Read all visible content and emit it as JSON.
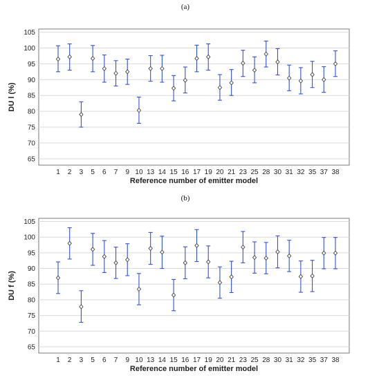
{
  "figure": {
    "panel_a_tag": "(a)",
    "panel_b_tag": "(b)"
  },
  "chart_data": [
    {
      "type": "scatter",
      "title": "(a)",
      "xlabel": "Reference number of emitter model",
      "ylabel": "DU l (%)",
      "ylim": [
        63,
        106
      ],
      "yticks": [
        65,
        70,
        75,
        80,
        85,
        90,
        95,
        100,
        105
      ],
      "grid": true,
      "categories": [
        "1",
        "2",
        "3",
        "5",
        "6",
        "7",
        "9",
        "10",
        "13",
        "14",
        "15",
        "16",
        "17",
        "19",
        "20",
        "21",
        "23",
        "25",
        "28",
        "30",
        "31",
        "32",
        "35",
        "37",
        "38"
      ],
      "series": [
        {
          "values": [
            96.5,
            97.2,
            79.0,
            96.7,
            93.5,
            92.0,
            92.5,
            80.3,
            93.5,
            93.5,
            87.3,
            89.8,
            96.7,
            97.2,
            87.5,
            89.0,
            95.2,
            93.0,
            98.1,
            95.6,
            90.5,
            89.6,
            91.6,
            90.0,
            95.0
          ],
          "err_low": [
            92.5,
            93.0,
            75.0,
            92.5,
            89.2,
            88.0,
            88.5,
            76.2,
            89.5,
            89.2,
            83.3,
            85.8,
            92.5,
            93.0,
            83.5,
            85.0,
            91.0,
            89.0,
            94.0,
            91.5,
            86.5,
            85.5,
            87.5,
            86.0,
            91.0
          ],
          "err_high": [
            100.7,
            101.3,
            83.0,
            100.8,
            97.8,
            96.0,
            96.5,
            84.5,
            97.6,
            97.7,
            91.3,
            94.0,
            100.9,
            101.3,
            91.6,
            93.2,
            99.3,
            97.2,
            102.2,
            99.8,
            94.6,
            93.8,
            95.8,
            94.1,
            99.1
          ]
        }
      ]
    },
    {
      "type": "scatter",
      "title": "(b)",
      "xlabel": "Reference number of emitter model",
      "ylabel": "DU f (%)",
      "ylim": [
        63,
        106
      ],
      "yticks": [
        65,
        70,
        75,
        80,
        85,
        90,
        95,
        100,
        105
      ],
      "grid": true,
      "categories": [
        "1",
        "2",
        "3",
        "5",
        "6",
        "7",
        "9",
        "10",
        "13",
        "14",
        "15",
        "16",
        "17",
        "19",
        "20",
        "21",
        "23",
        "25",
        "28",
        "30",
        "31",
        "32",
        "35",
        "37",
        "38"
      ],
      "series": [
        {
          "values": [
            87.0,
            98.0,
            77.8,
            96.1,
            93.8,
            91.8,
            92.8,
            83.4,
            96.4,
            95.2,
            81.5,
            91.8,
            97.3,
            92.1,
            85.5,
            87.3,
            96.8,
            93.5,
            93.3,
            95.3,
            94.0,
            87.4,
            87.6,
            94.9,
            94.9
          ],
          "err_low": [
            82.0,
            93.0,
            72.8,
            91.0,
            88.7,
            86.8,
            87.7,
            78.4,
            91.3,
            90.0,
            76.5,
            86.7,
            92.2,
            87.0,
            80.5,
            82.3,
            91.8,
            88.5,
            88.3,
            90.2,
            89.0,
            82.4,
            82.6,
            89.9,
            89.9
          ],
          "err_high": [
            92.1,
            103.0,
            82.9,
            101.2,
            98.9,
            96.8,
            97.9,
            88.4,
            101.5,
            100.3,
            86.5,
            96.9,
            102.4,
            97.2,
            90.5,
            92.3,
            101.8,
            98.5,
            98.3,
            100.4,
            99.0,
            92.4,
            92.6,
            99.9,
            99.9
          ]
        }
      ]
    }
  ]
}
